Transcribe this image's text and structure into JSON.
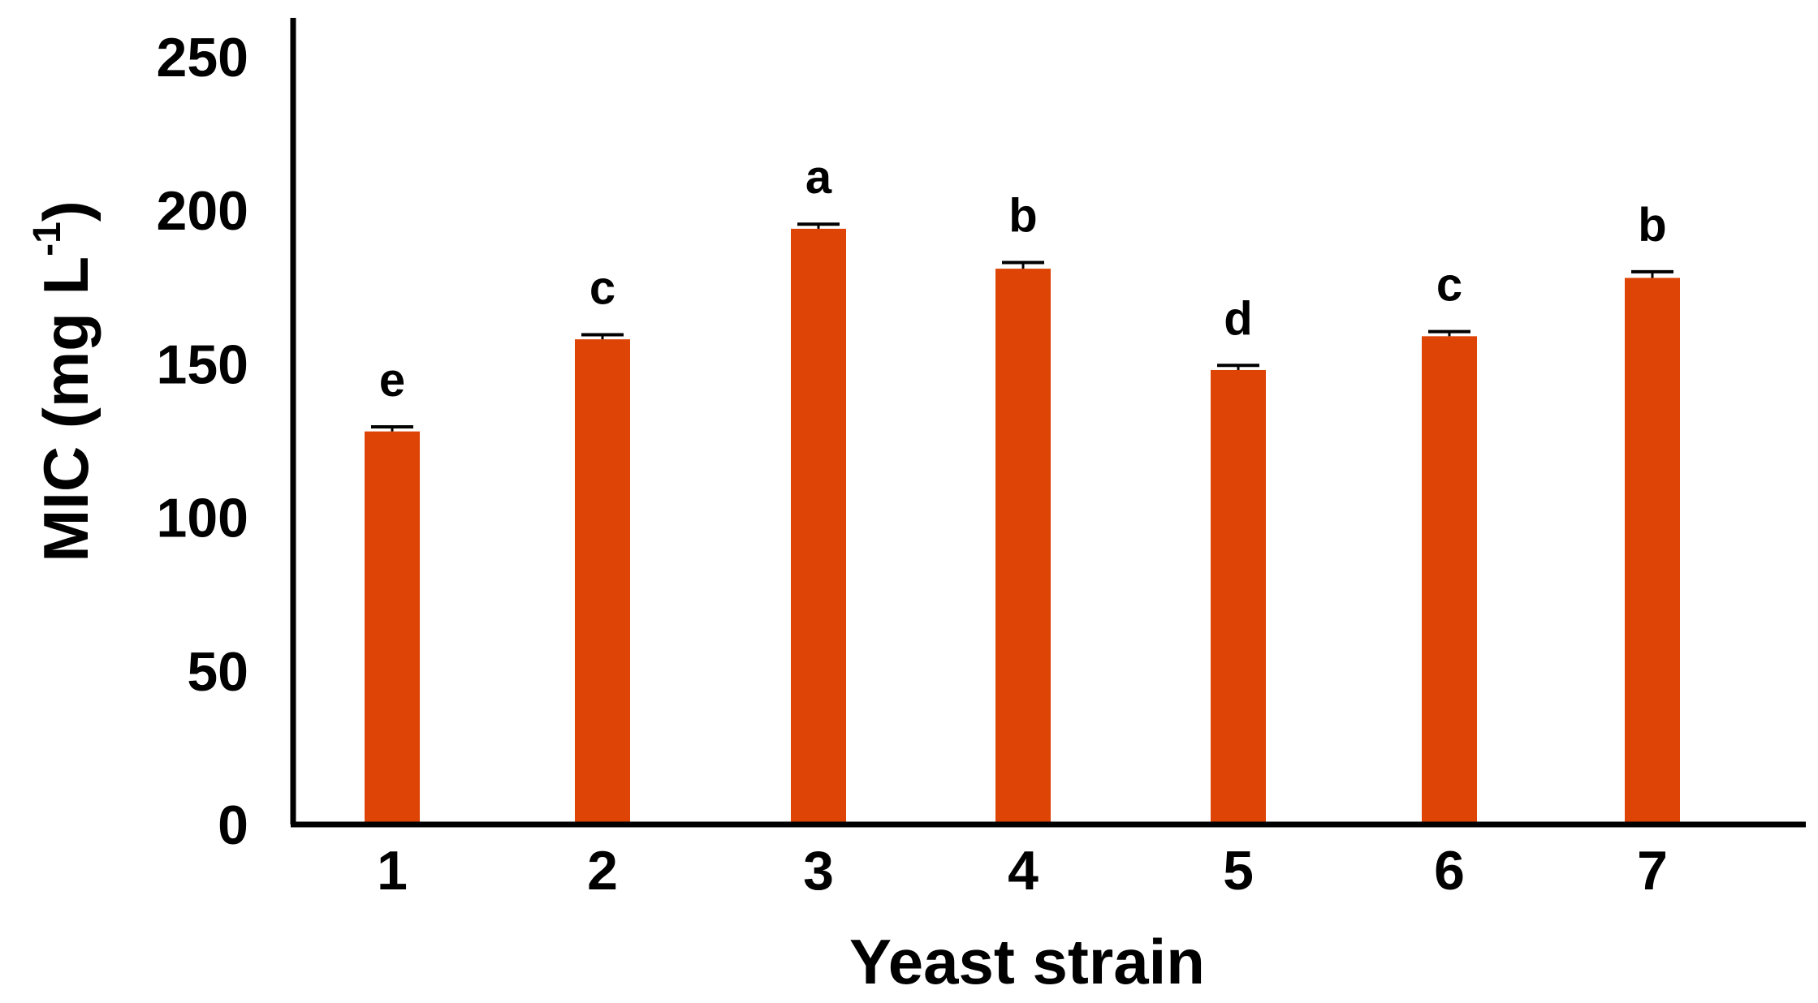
{
  "chart_data": {
    "type": "bar",
    "categories": [
      "1",
      "2",
      "3",
      "4",
      "5",
      "6",
      "7"
    ],
    "values": [
      128,
      158,
      194,
      181,
      148,
      159,
      178
    ],
    "errors": [
      1.5,
      1.5,
      1.5,
      2,
      1.5,
      1.5,
      2
    ],
    "significance_labels": [
      "e",
      "c",
      "a",
      "b",
      "d",
      "c",
      "b"
    ],
    "xlabel": "Yeast strain",
    "ylabel_main": "MIC (mg L",
    "ylabel_sup": "-1",
    "ylabel_close": ")",
    "ylim": [
      0,
      250
    ],
    "yticks": [
      0,
      50,
      100,
      150,
      200,
      250
    ],
    "grid": false,
    "legend": "none",
    "bar_color": "#dd4406",
    "axis_color": "#000000"
  }
}
